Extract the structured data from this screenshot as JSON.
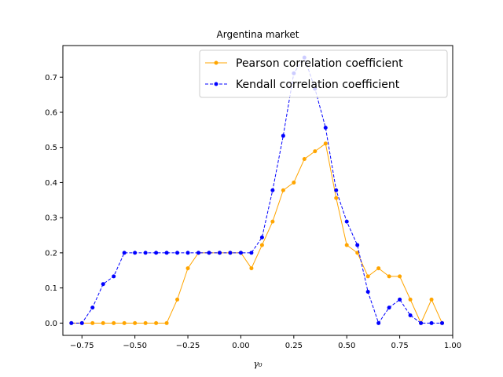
{
  "chart_data": {
    "type": "line",
    "title": "Argentina market",
    "xlabel": "γ₀",
    "ylabel": "",
    "xlim": [
      -0.84,
      1.0
    ],
    "ylim": [
      -0.035,
      0.79
    ],
    "xticks": [
      -0.75,
      -0.5,
      -0.25,
      0.0,
      0.25,
      0.5,
      0.75,
      1.0
    ],
    "xtick_labels": [
      "−0.75",
      "−0.50",
      "−0.25",
      "0.00",
      "0.25",
      "0.50",
      "0.75",
      "1.00"
    ],
    "yticks": [
      0.0,
      0.1,
      0.2,
      0.3,
      0.4,
      0.5,
      0.6,
      0.7
    ],
    "ytick_labels": [
      "0.0",
      "0.1",
      "0.2",
      "0.3",
      "0.4",
      "0.5",
      "0.6",
      "0.7"
    ],
    "legend_position": "top-right",
    "grid": false,
    "x": [
      -0.8,
      -0.75,
      -0.7,
      -0.65,
      -0.6,
      -0.55,
      -0.5,
      -0.45,
      -0.4,
      -0.35,
      -0.3,
      -0.25,
      -0.2,
      -0.15,
      -0.1,
      -0.05,
      0.0,
      0.05,
      0.1,
      0.15,
      0.2,
      0.25,
      0.3,
      0.35,
      0.4,
      0.45,
      0.5,
      0.55,
      0.6,
      0.65,
      0.7,
      0.75,
      0.8,
      0.85,
      0.9,
      0.95
    ],
    "series": [
      {
        "name": "Pearson correlation coefficient",
        "color": "#ffa500",
        "dash": "solid",
        "values": [
          0.0,
          0.0,
          0.0,
          0.0,
          0.0,
          0.0,
          0.0,
          0.0,
          0.0,
          0.0,
          0.067,
          0.156,
          0.2,
          0.2,
          0.2,
          0.2,
          0.2,
          0.156,
          0.222,
          0.289,
          0.378,
          0.4,
          0.467,
          0.489,
          0.511,
          0.356,
          0.222,
          0.2,
          0.133,
          0.156,
          0.133,
          0.133,
          0.067,
          0.0,
          0.067,
          0.0
        ]
      },
      {
        "name": "Kendall correlation coefficient",
        "color": "#0000ff",
        "dash": "dashed",
        "values": [
          0.0,
          0.0,
          0.044,
          0.111,
          0.133,
          0.2,
          0.2,
          0.2,
          0.2,
          0.2,
          0.2,
          0.2,
          0.2,
          0.2,
          0.2,
          0.2,
          0.2,
          0.2,
          0.244,
          0.378,
          0.533,
          0.711,
          0.756,
          0.667,
          0.556,
          0.378,
          0.289,
          0.222,
          0.089,
          0.0,
          0.044,
          0.067,
          0.022,
          0.0,
          0.0,
          0.0
        ]
      }
    ]
  }
}
